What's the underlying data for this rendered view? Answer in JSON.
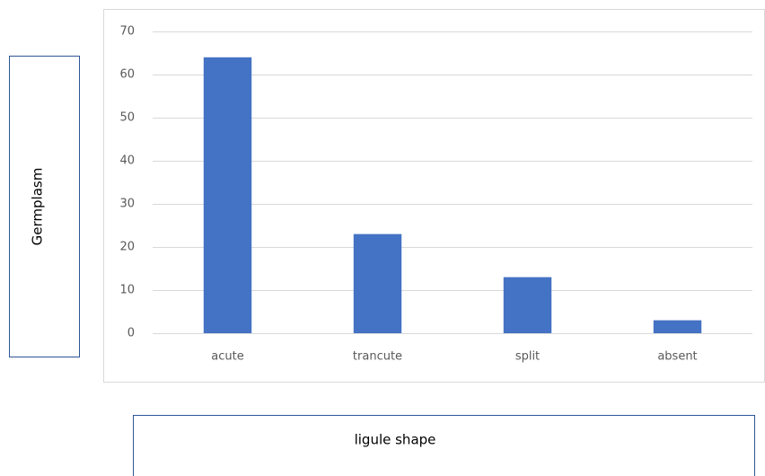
{
  "chart_data": {
    "type": "bar",
    "x_label": "ligule shape",
    "y_label": "Germplasm",
    "categories": [
      "acute",
      "trancute",
      "split",
      "absent"
    ],
    "values": [
      64,
      23,
      13,
      3
    ],
    "color": "#4472c4",
    "ylim": [
      0,
      70
    ],
    "yticks": [
      0,
      10,
      20,
      30,
      40,
      50,
      60,
      70
    ],
    "grid": true
  }
}
